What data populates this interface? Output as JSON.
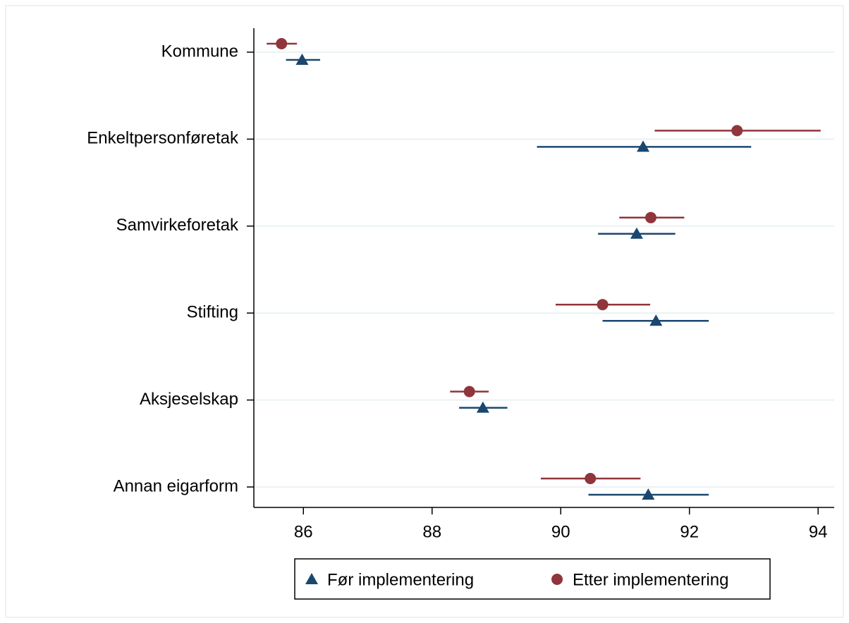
{
  "chart_data": {
    "type": "dot-errorbar",
    "categories": [
      "Kommune",
      "Enkeltpersonføretak",
      "Samvirkeforetak",
      "Stifting",
      "Aksjeselskap",
      "Annan eigarform"
    ],
    "series": [
      {
        "name": "Før implementering",
        "color": "#1a476f",
        "marker": "triangle",
        "values": [
          85.98,
          91.28,
          91.18,
          91.48,
          88.79,
          91.36
        ],
        "lower": [
          85.73,
          89.63,
          90.58,
          90.65,
          88.42,
          90.43
        ],
        "upper": [
          86.26,
          92.96,
          91.78,
          92.3,
          89.17,
          92.3
        ]
      },
      {
        "name": "Etter implementering",
        "color": "#90353b",
        "marker": "circle",
        "values": [
          85.66,
          92.74,
          91.4,
          90.65,
          88.58,
          90.46
        ],
        "lower": [
          85.43,
          91.46,
          90.91,
          89.92,
          88.28,
          89.69
        ],
        "upper": [
          85.9,
          94.04,
          91.92,
          91.39,
          88.88,
          91.24
        ]
      }
    ],
    "xlim": [
      85.23,
      94.25
    ],
    "xticks": [
      86,
      88,
      90,
      92,
      94
    ],
    "grid": true
  }
}
